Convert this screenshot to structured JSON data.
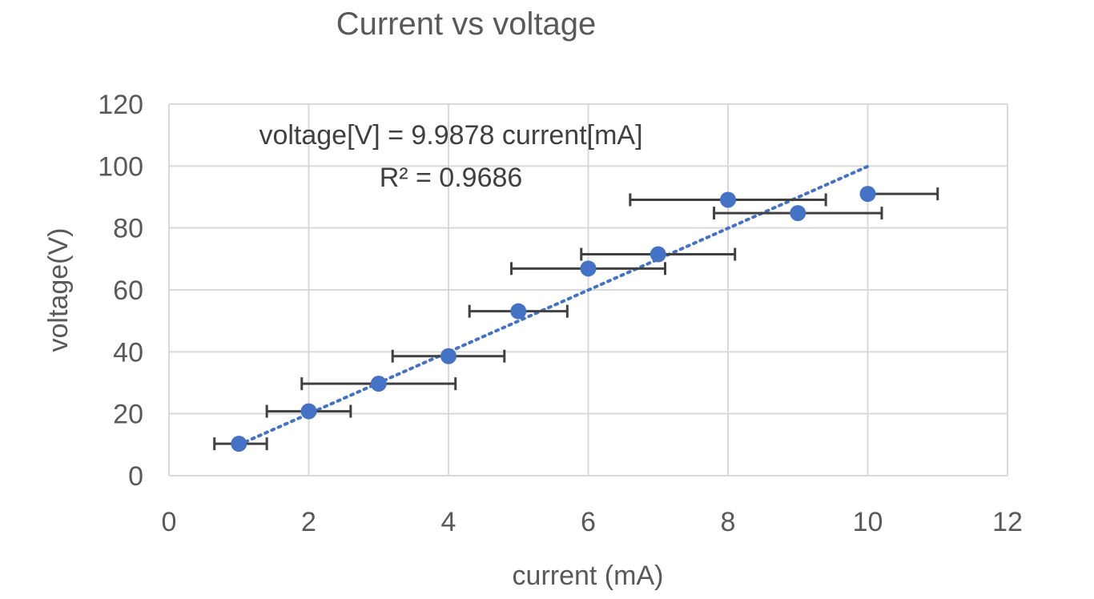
{
  "chart_data": {
    "type": "scatter",
    "title": "Current vs voltage",
    "xlabel": "current (mA)",
    "ylabel": "voltage(V)",
    "xlim": [
      0,
      12
    ],
    "ylim": [
      0,
      120
    ],
    "x_ticks": [
      0,
      2,
      4,
      6,
      8,
      10,
      12
    ],
    "y_ticks": [
      0,
      20,
      40,
      60,
      80,
      100,
      120
    ],
    "grid": true,
    "legend": "none",
    "series": [
      {
        "x": [
          1,
          2,
          3,
          4,
          5,
          6,
          7,
          8,
          9,
          10
        ],
        "y": [
          10.3,
          20.8,
          29.7,
          38.6,
          53.1,
          66.9,
          71.5,
          89.1,
          84.8,
          91.0
        ],
        "x_error_low": [
          0.35,
          0.6,
          1.1,
          0.8,
          0.7,
          1.1,
          1.1,
          1.4,
          1.2,
          0.0
        ],
        "x_error_high": [
          0.4,
          0.6,
          1.1,
          0.8,
          0.7,
          1.1,
          1.1,
          1.4,
          1.2,
          1.0
        ],
        "color": "#4472c4"
      }
    ],
    "trendline": {
      "type": "linear-through-origin",
      "slope": 9.9878,
      "x_range": [
        1,
        10
      ],
      "style": "dotted",
      "color": "#4472c4",
      "equation": "voltage[V] = 9.9878 current[mA]",
      "r_squared": "R² = 0.9686"
    },
    "colors": {
      "marker": "#4472c4",
      "error_bar": "#404040",
      "grid": "#d9d9d9",
      "text": "#595959"
    }
  }
}
